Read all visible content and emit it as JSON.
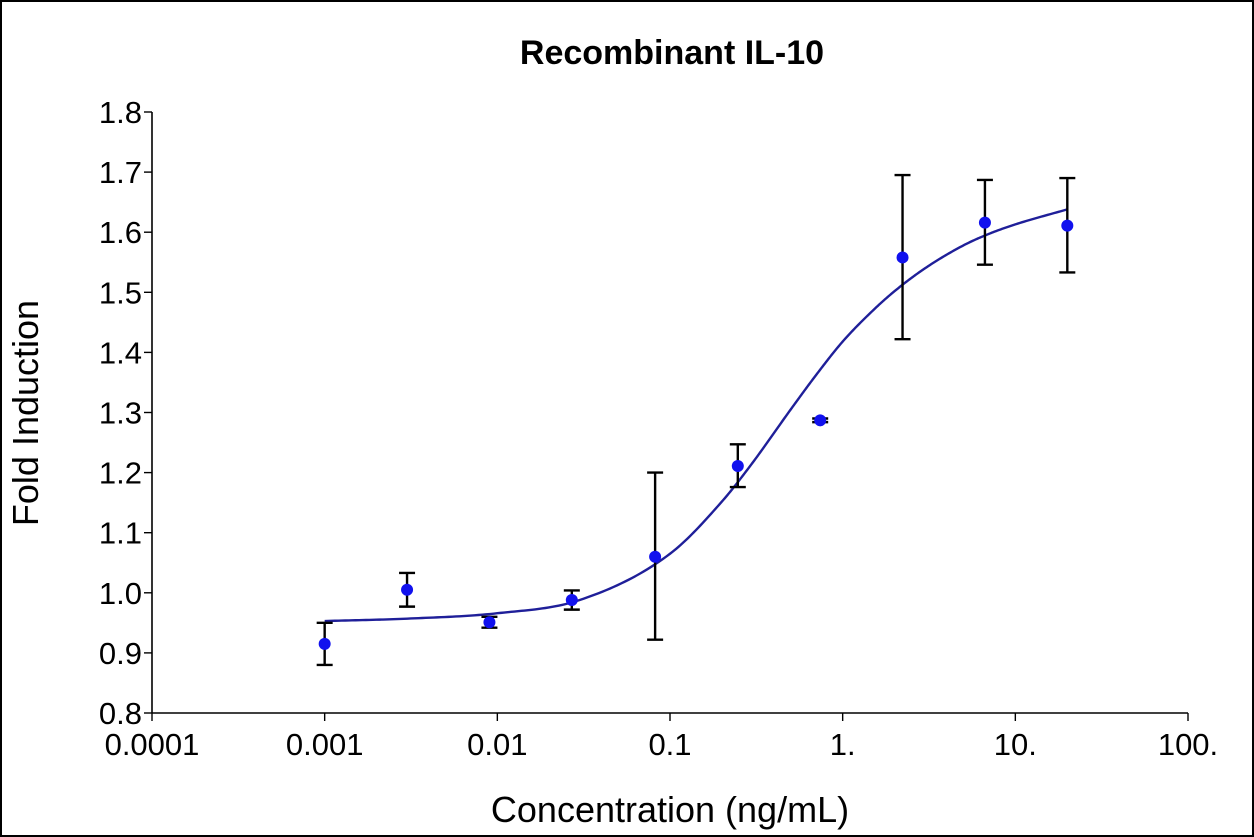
{
  "chart_data": {
    "type": "scatter",
    "title": "Recombinant IL-10",
    "xlabel": "Concentration (ng/mL)",
    "ylabel": "Fold Induction",
    "x_scale": "log",
    "xlim": [
      0.0001,
      100
    ],
    "ylim": [
      0.8,
      1.8
    ],
    "x_tick_labels": [
      "0.0001",
      "0.001",
      "0.01",
      "0.1",
      "1.",
      "10.",
      "100."
    ],
    "y_tick_labels": [
      "0.8",
      "0.9",
      "1.0",
      "1.1",
      "1.2",
      "1.3",
      "1.4",
      "1.5",
      "1.6",
      "1.7",
      "1.8"
    ],
    "grid": false,
    "colors": {
      "points": "#1111ee",
      "curve": "#1f1f99",
      "error_bars": "#000000"
    },
    "series": [
      {
        "points": [
          {
            "x": 0.001,
            "y": 0.915,
            "y_low": 0.88,
            "y_high": 0.95
          },
          {
            "x": 0.003,
            "y": 1.005,
            "y_low": 0.977,
            "y_high": 1.033
          },
          {
            "x": 0.009,
            "y": 0.951,
            "y_low": 0.942,
            "y_high": 0.96
          },
          {
            "x": 0.027,
            "y": 0.988,
            "y_low": 0.972,
            "y_high": 1.004
          },
          {
            "x": 0.082,
            "y": 1.06,
            "y_low": 0.922,
            "y_high": 1.2
          },
          {
            "x": 0.247,
            "y": 1.211,
            "y_low": 1.176,
            "y_high": 1.247
          },
          {
            "x": 0.741,
            "y": 1.287,
            "y_low": 1.284,
            "y_high": 1.29
          },
          {
            "x": 2.222,
            "y": 1.558,
            "y_low": 1.422,
            "y_high": 1.695
          },
          {
            "x": 6.667,
            "y": 1.616,
            "y_low": 1.546,
            "y_high": 1.687
          },
          {
            "x": 20.0,
            "y": 1.611,
            "y_low": 1.533,
            "y_high": 1.69
          }
        ]
      }
    ],
    "fit_curve": {
      "x": [
        0.001,
        0.003,
        0.01,
        0.03,
        0.1,
        0.2,
        0.3,
        0.5,
        0.7,
        1.0,
        1.5,
        2.0,
        3.0,
        5.0,
        7.0,
        10.0,
        20.0
      ],
      "y": [
        0.953,
        0.957,
        0.966,
        0.988,
        1.065,
        1.152,
        1.216,
        1.305,
        1.362,
        1.418,
        1.47,
        1.502,
        1.54,
        1.578,
        1.597,
        1.613,
        1.638
      ]
    }
  }
}
